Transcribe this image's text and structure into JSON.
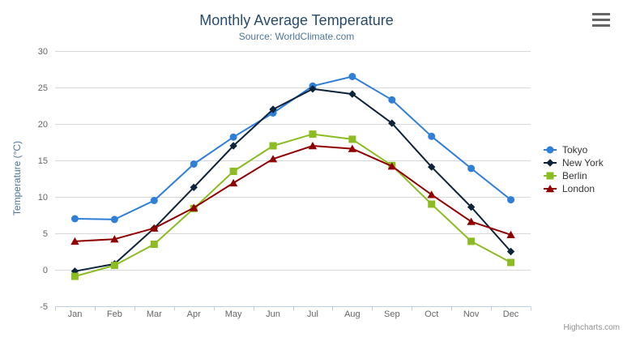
{
  "colors": {
    "title": "#274b6d",
    "subtitle": "#4d759e",
    "axis_title": "#4d759e",
    "axis_label": "#666666",
    "axis_line": "#C0D0E0",
    "gridline": "#D8D8D8",
    "legend_text": "#333333",
    "credits_text": "#909090",
    "burger_icon": "#666666"
  },
  "credits": {
    "label": "Highcharts.com"
  },
  "chart_data": {
    "type": "line",
    "title": "Monthly Average Temperature",
    "subtitle": "Source: WorldClimate.com",
    "xlabel": "",
    "ylabel": "Temperature (°C)",
    "categories": [
      "Jan",
      "Feb",
      "Mar",
      "Apr",
      "May",
      "Jun",
      "Jul",
      "Aug",
      "Sep",
      "Oct",
      "Nov",
      "Dec"
    ],
    "ylim": [
      -5,
      30
    ],
    "yticks": [
      -5,
      0,
      5,
      10,
      15,
      20,
      25,
      30
    ],
    "grid": true,
    "legend_position": "right",
    "series": [
      {
        "name": "Tokyo",
        "color": "#2f7ed8",
        "marker": "circle",
        "values": [
          7.0,
          6.9,
          9.5,
          14.5,
          18.2,
          21.5,
          25.2,
          26.5,
          23.3,
          18.3,
          13.9,
          9.6
        ]
      },
      {
        "name": "New York",
        "color": "#0d233a",
        "marker": "diamond",
        "values": [
          -0.2,
          0.8,
          5.7,
          11.3,
          17.0,
          22.0,
          24.8,
          24.1,
          20.1,
          14.1,
          8.6,
          2.5
        ]
      },
      {
        "name": "Berlin",
        "color": "#8bbc21",
        "marker": "square",
        "values": [
          -0.9,
          0.6,
          3.5,
          8.4,
          13.5,
          17.0,
          18.6,
          17.9,
          14.3,
          9.0,
          3.9,
          1.0
        ]
      },
      {
        "name": "London",
        "color": "#910000",
        "marker": "triangle",
        "values": [
          3.9,
          4.2,
          5.7,
          8.5,
          11.9,
          15.2,
          17.0,
          16.6,
          14.2,
          10.3,
          6.6,
          4.8
        ]
      }
    ]
  }
}
